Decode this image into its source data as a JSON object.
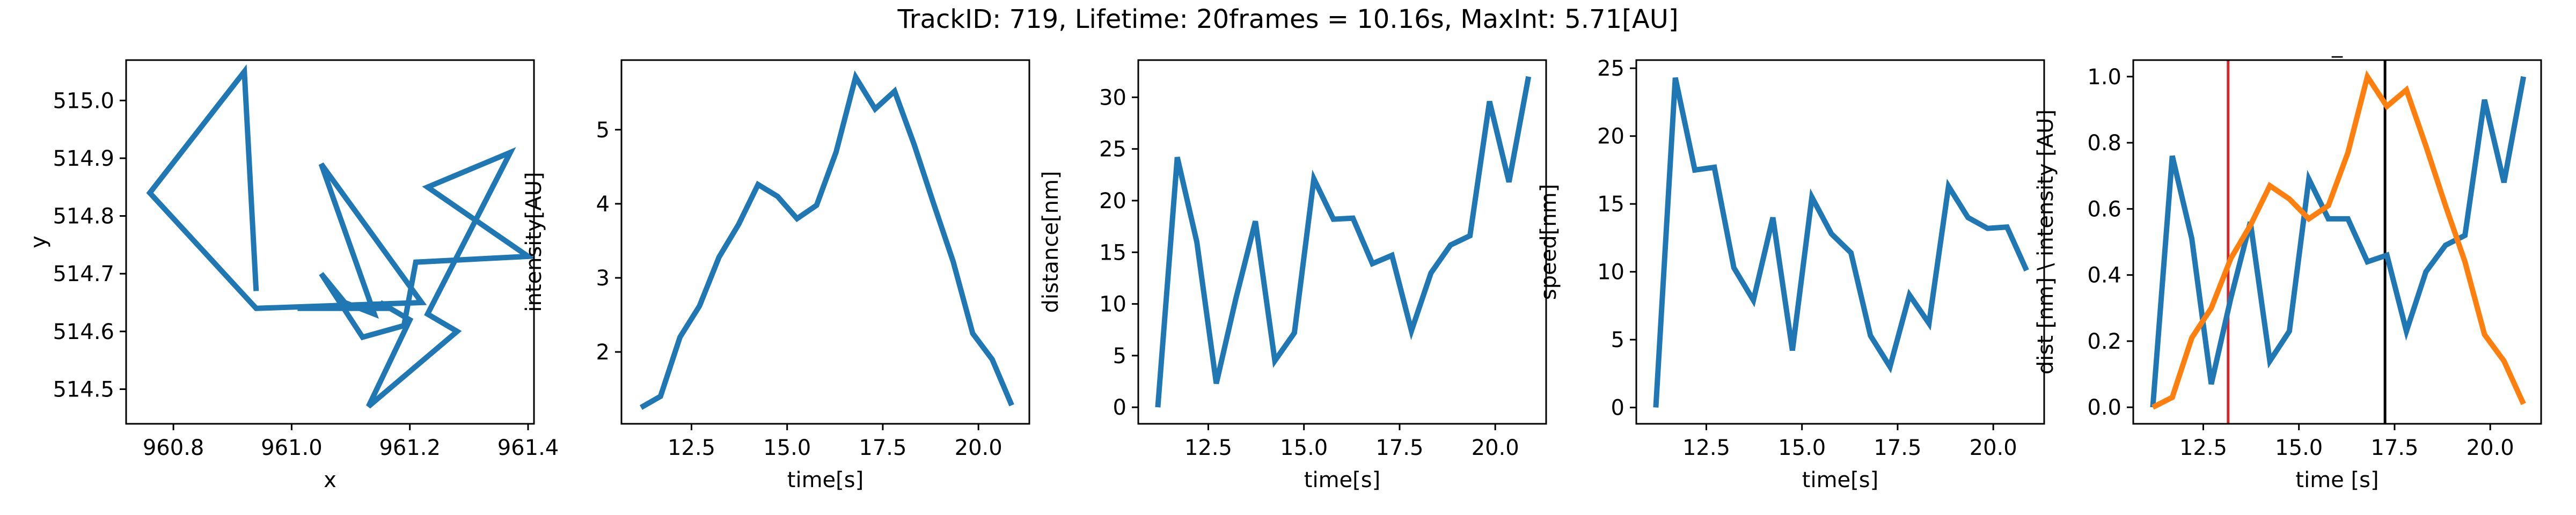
{
  "figure": {
    "title": "TrackID: 719, Lifetime: 20frames = 10.16s, MaxInt: 5.71[AU]"
  },
  "chart_data": [
    {
      "type": "line",
      "xlabel": "x",
      "ylabel": "y",
      "xlim": [
        960.72,
        961.41
      ],
      "ylim": [
        514.44,
        515.07
      ],
      "xticks": [
        960.8,
        961.0,
        961.2,
        961.4
      ],
      "yticks": [
        514.5,
        514.6,
        514.7,
        514.8,
        514.9,
        515.0
      ],
      "xtick_labels": [
        "960.8",
        "961.0",
        "961.2",
        "961.4"
      ],
      "ytick_labels": [
        "514.5",
        "514.6",
        "514.7",
        "514.8",
        "514.9",
        "515.0"
      ],
      "grid": false,
      "series": [
        {
          "color": "#1f77b4",
          "x": [
            960.94,
            960.92,
            960.76,
            960.94,
            961.22,
            961.05,
            961.14,
            961.09,
            961.05,
            961.12,
            961.19,
            961.21,
            961.4,
            961.23,
            961.37,
            961.23,
            961.28,
            961.13,
            961.2,
            961.15,
            961.16,
            961.01
          ],
          "y": [
            514.67,
            515.05,
            514.84,
            514.64,
            514.65,
            514.89,
            514.63,
            514.65,
            514.7,
            514.59,
            514.61,
            514.72,
            514.73,
            514.85,
            514.91,
            514.63,
            514.6,
            514.47,
            514.62,
            514.65,
            514.64,
            514.64
          ]
        }
      ]
    },
    {
      "type": "line",
      "xlabel": "time[s]",
      "ylabel": "intensity[AU]",
      "xlim": [
        10.67,
        21.33
      ],
      "ylim": [
        1.03,
        5.94
      ],
      "xticks": [
        12.5,
        15.0,
        17.5,
        20.0
      ],
      "yticks": [
        2,
        3,
        4,
        5
      ],
      "xtick_labels": [
        "12.5",
        "15.0",
        "17.5",
        "20.0"
      ],
      "ytick_labels": [
        "2",
        "3",
        "4",
        "5"
      ],
      "grid": false,
      "series": [
        {
          "color": "#1f77b4",
          "x": [
            11.18,
            11.69,
            12.2,
            12.71,
            13.22,
            13.73,
            14.24,
            14.75,
            15.26,
            15.77,
            16.28,
            16.79,
            17.3,
            17.81,
            18.32,
            18.83,
            19.34,
            19.85,
            20.36,
            20.87
          ],
          "y": [
            1.25,
            1.4,
            2.2,
            2.62,
            3.28,
            3.72,
            4.26,
            4.1,
            3.8,
            3.98,
            4.7,
            5.71,
            5.28,
            5.52,
            4.8,
            4.0,
            3.22,
            2.25,
            1.9,
            1.28
          ]
        }
      ]
    },
    {
      "type": "line",
      "xlabel": "time[s]",
      "ylabel": "distance[nm]",
      "xlim": [
        10.67,
        21.33
      ],
      "ylim": [
        -1.6,
        33.6
      ],
      "xticks": [
        12.5,
        15.0,
        17.5,
        20.0
      ],
      "yticks": [
        0,
        5,
        10,
        15,
        20,
        25,
        30
      ],
      "xtick_labels": [
        "12.5",
        "15.0",
        "17.5",
        "20.0"
      ],
      "ytick_labels": [
        "0",
        "5",
        "10",
        "15",
        "20",
        "25",
        "30"
      ],
      "grid": false,
      "series": [
        {
          "color": "#1f77b4",
          "x": [
            11.18,
            11.69,
            12.2,
            12.71,
            13.22,
            13.73,
            14.24,
            14.75,
            15.26,
            15.77,
            16.28,
            16.79,
            17.3,
            17.81,
            18.32,
            18.83,
            19.34,
            19.85,
            20.36,
            20.87
          ],
          "y": [
            0.0,
            24.2,
            16.0,
            2.3,
            10.5,
            18.0,
            4.5,
            7.2,
            22.1,
            18.2,
            18.3,
            13.9,
            14.7,
            7.4,
            13.0,
            15.7,
            16.6,
            29.6,
            21.8,
            32.0
          ]
        }
      ]
    },
    {
      "type": "line",
      "xlabel": "time[s]",
      "ylabel": "speed[nm]",
      "xlim": [
        10.67,
        21.33
      ],
      "ylim": [
        -1.2,
        25.6
      ],
      "xticks": [
        12.5,
        15.0,
        17.5,
        20.0
      ],
      "yticks": [
        0,
        5,
        10,
        15,
        20,
        25
      ],
      "xtick_labels": [
        "12.5",
        "15.0",
        "17.5",
        "20.0"
      ],
      "ytick_labels": [
        "0",
        "5",
        "10",
        "15",
        "20",
        "25"
      ],
      "grid": false,
      "series": [
        {
          "color": "#1f77b4",
          "x": [
            11.18,
            11.69,
            12.2,
            12.71,
            13.22,
            13.73,
            14.24,
            14.75,
            15.26,
            15.77,
            16.28,
            16.79,
            17.3,
            17.81,
            18.32,
            18.83,
            19.34,
            19.85,
            20.36,
            20.87
          ],
          "y": [
            0.0,
            24.3,
            17.5,
            17.7,
            10.3,
            7.9,
            14.0,
            4.2,
            15.5,
            12.8,
            11.4,
            5.3,
            3.0,
            8.3,
            6.2,
            16.3,
            14.0,
            13.2,
            13.3,
            10.1
          ]
        }
      ]
    },
    {
      "type": "line",
      "title": "_",
      "xlabel": "time [s]",
      "ylabel": "dist [nm] \\ intensity [AU]",
      "xlim": [
        10.67,
        21.33
      ],
      "ylim": [
        -0.05,
        1.05
      ],
      "xticks": [
        12.5,
        15.0,
        17.5,
        20.0
      ],
      "yticks": [
        0.0,
        0.2,
        0.4,
        0.6,
        0.8,
        1.0
      ],
      "xtick_labels": [
        "12.5",
        "15.0",
        "17.5",
        "20.0"
      ],
      "ytick_labels": [
        "0.0",
        "0.2",
        "0.4",
        "0.6",
        "0.8",
        "1.0"
      ],
      "grid": false,
      "vlines": [
        {
          "x": 13.15,
          "color": "#d62728"
        },
        {
          "x": 17.25,
          "color": "#000000"
        }
      ],
      "series": [
        {
          "color": "#1f77b4",
          "x": [
            11.18,
            11.69,
            12.2,
            12.71,
            13.22,
            13.73,
            14.24,
            14.75,
            15.26,
            15.77,
            16.28,
            16.79,
            17.3,
            17.81,
            18.32,
            18.83,
            19.34,
            19.85,
            20.36,
            20.87
          ],
          "y": [
            0.0,
            0.76,
            0.51,
            0.07,
            0.33,
            0.56,
            0.14,
            0.23,
            0.69,
            0.57,
            0.57,
            0.44,
            0.46,
            0.23,
            0.41,
            0.49,
            0.52,
            0.93,
            0.68,
            1.0
          ]
        },
        {
          "color": "#ff7f0e",
          "x": [
            11.18,
            11.69,
            12.2,
            12.71,
            13.22,
            13.73,
            14.24,
            14.75,
            15.26,
            15.77,
            16.28,
            16.79,
            17.3,
            17.81,
            18.32,
            18.83,
            19.34,
            19.85,
            20.36,
            20.87
          ],
          "y": [
            0.0,
            0.03,
            0.21,
            0.3,
            0.45,
            0.55,
            0.67,
            0.63,
            0.57,
            0.61,
            0.77,
            1.0,
            0.91,
            0.96,
            0.79,
            0.61,
            0.44,
            0.22,
            0.14,
            0.01
          ]
        }
      ]
    }
  ]
}
